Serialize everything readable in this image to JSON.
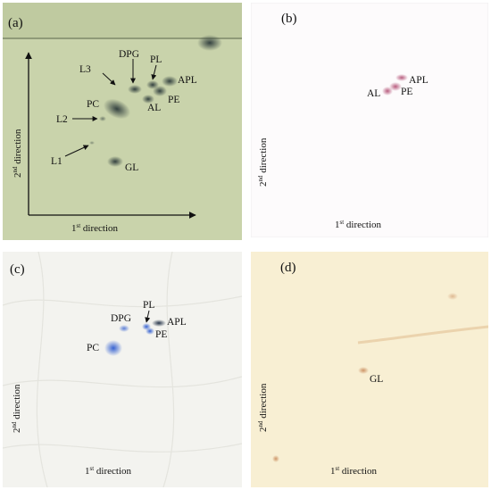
{
  "panels": [
    {
      "id": "a",
      "label": "(a)",
      "spots": [
        "L3",
        "DPG",
        "PL",
        "APL",
        "PC",
        "PE",
        "AL",
        "L2",
        "L1",
        "GL"
      ],
      "axis": {
        "x_label": "direction",
        "x_ord": "1",
        "x_sup": "st",
        "y_label": "direction",
        "y_ord": "2",
        "y_sup": "nd"
      }
    },
    {
      "id": "b",
      "label": "(b)",
      "spots": [
        "APL",
        "AL",
        "PE"
      ],
      "axis": {
        "x_label": "direction",
        "x_ord": "1",
        "x_sup": "st",
        "y_label": "direction",
        "y_ord": "2",
        "y_sup": "nd"
      }
    },
    {
      "id": "c",
      "label": "(c)",
      "spots": [
        "PL",
        "DPG",
        "APL",
        "PE",
        "PC"
      ],
      "axis": {
        "x_label": "direction",
        "x_ord": "1",
        "x_sup": "st",
        "y_label": "direction",
        "y_ord": "2",
        "y_sup": "nd"
      }
    },
    {
      "id": "d",
      "label": "(d)",
      "spots": [
        "GL"
      ],
      "axis": {
        "x_label": "direction",
        "x_ord": "1",
        "x_sup": "st",
        "y_label": "direction",
        "y_ord": "2",
        "y_sup": "nd"
      }
    }
  ],
  "colors": {
    "panel_a_bg": "#c9d3ab",
    "panel_b_bg": "#fdfbfc",
    "panel_c_bg": "#f3f3ef",
    "panel_d_bg": "#f8efd3",
    "stain_a": "#2c3a3a",
    "stain_b": "#b04a70",
    "stain_c": "#2d5bd0",
    "stain_d": "#c88a5a"
  }
}
